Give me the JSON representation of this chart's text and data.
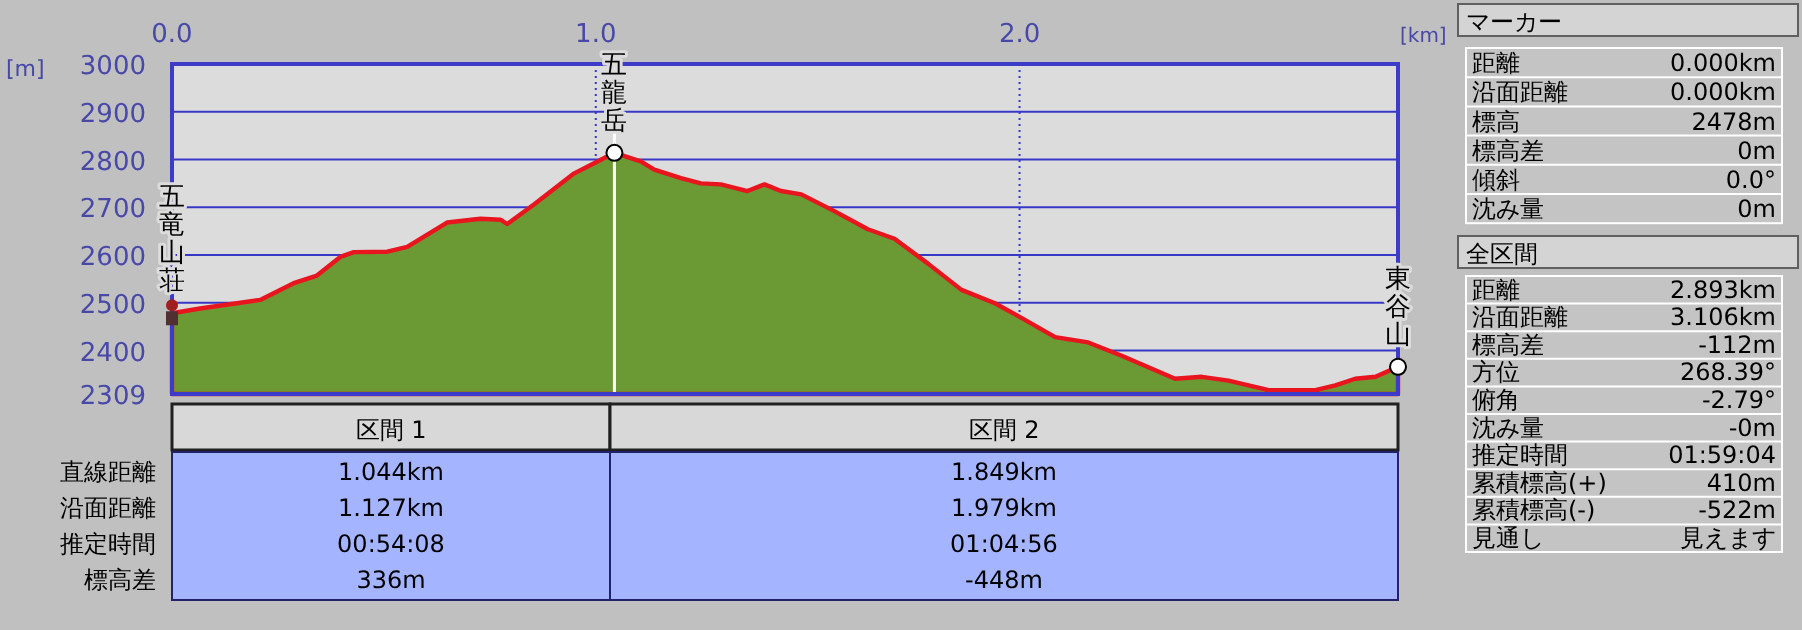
{
  "chart_data": [
    {
      "type": "area",
      "xlabel": "[km]",
      "ylabel": "[m]",
      "xlim": [
        0,
        2.893
      ],
      "ylim": [
        2309,
        3000
      ],
      "xticks": [
        {
          "value": 0,
          "label": "0.0"
        },
        {
          "value": 1,
          "label": "1.0"
        },
        {
          "value": 2,
          "label": "2.0"
        }
      ],
      "yticks": [
        2309,
        2400,
        2500,
        2600,
        2700,
        2800,
        2900,
        3000
      ],
      "grid": true,
      "x": [
        0,
        0.066,
        0.208,
        0.287,
        0.342,
        0.397,
        0.429,
        0.508,
        0.555,
        0.649,
        0.728,
        0.775,
        0.791,
        0.854,
        0.949,
        0.996,
        1.044,
        1.106,
        1.138,
        1.201,
        1.248,
        1.295,
        1.358,
        1.398,
        1.437,
        1.485,
        1.563,
        1.642,
        1.705,
        1.784,
        1.863,
        1.942,
        1.997,
        2.084,
        2.162,
        2.241,
        2.367,
        2.43,
        2.493,
        2.588,
        2.698,
        2.745,
        2.792,
        2.84,
        2.893
      ],
      "series": [
        {
          "color": "#6b9a35",
          "values": [
            2478,
            2488,
            2506,
            2541,
            2557,
            2596,
            2606,
            2607,
            2617,
            2668,
            2676,
            2674,
            2665,
            2706,
            2771,
            2792,
            2814,
            2796,
            2779,
            2761,
            2750,
            2748,
            2734,
            2748,
            2734,
            2727,
            2692,
            2654,
            2634,
            2582,
            2527,
            2499,
            2472,
            2428,
            2417,
            2389,
            2341,
            2345,
            2337,
            2317,
            2317,
            2327,
            2341,
            2345,
            2366
          ]
        }
      ],
      "ref_lines": [
        {
          "axis": "x",
          "value": 1.044,
          "color": "#ffffff"
        }
      ],
      "annotations": [
        {
          "text": "五竜山荘",
          "x": 0,
          "y": 2478
        },
        {
          "text": "五龍岳",
          "x": 1.044,
          "y": 2814
        },
        {
          "text": "東谷山",
          "x": 2.893,
          "y": 2366
        }
      ]
    },
    {
      "type": "other",
      "annotations": [
        "区間 1",
        "区間 2",
        "直線距離",
        "1.044km",
        "1.849km",
        "沿面距離",
        "1.127km",
        "1.979km",
        "推定時間",
        "00:54:08",
        "01:04:56",
        "標高差",
        "336m",
        "-448m"
      ]
    },
    {
      "type": "other",
      "title": "マーカー",
      "annotations": [
        "距離",
        "0.000km",
        "沿面距離",
        "0.000km",
        "標高",
        "2478m",
        "標高差",
        "0m",
        "傾斜",
        "0.0°",
        "沈み量",
        "0m"
      ]
    },
    {
      "type": "other",
      "title": "全区間",
      "annotations": [
        "距離",
        "2.893km",
        "沿面距離",
        "3.106km",
        "標高差",
        "-112m",
        "方位",
        "268.39°",
        "俯角",
        "-2.79°",
        "沈み量",
        "-0m",
        "推定時間",
        "01:59:04",
        "累積標高(+)",
        "410m",
        "累積標高(-)",
        "-522m",
        "見通し",
        "見えます"
      ]
    }
  ]
}
